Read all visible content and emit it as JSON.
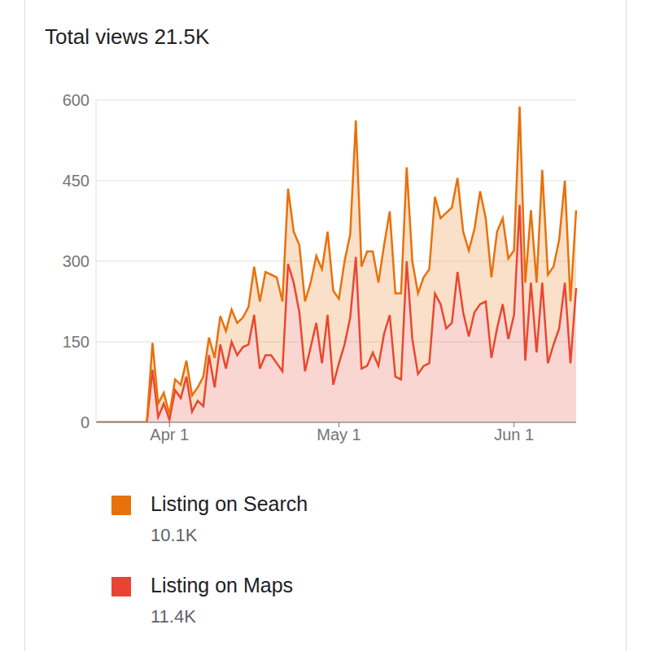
{
  "chart_data": {
    "type": "area",
    "title": "Total views 21.5K",
    "stacked": true,
    "grid": true,
    "categories": [
      null,
      null,
      null,
      null,
      null,
      null,
      null,
      null,
      null,
      null,
      null,
      null,
      null,
      "Apr 1",
      null,
      null,
      null,
      null,
      null,
      null,
      null,
      null,
      null,
      null,
      null,
      null,
      null,
      null,
      null,
      null,
      null,
      null,
      null,
      null,
      null,
      null,
      null,
      null,
      null,
      null,
      null,
      null,
      null,
      "May 1",
      null,
      null,
      null,
      null,
      null,
      null,
      null,
      null,
      null,
      null,
      null,
      null,
      null,
      null,
      null,
      null,
      null,
      null,
      null,
      null,
      null,
      null,
      null,
      null,
      null,
      null,
      null,
      null,
      null,
      null,
      "Jun 1",
      null,
      null,
      null,
      null,
      null,
      null,
      null,
      null,
      null,
      null,
      null
    ],
    "ylim": [
      0,
      600
    ],
    "yticks": [
      0,
      150,
      300,
      450,
      600
    ],
    "series": [
      {
        "name": "Listing on Search",
        "total": "10.1K",
        "color": "#e8710a",
        "values": [
          0,
          0,
          0,
          0,
          0,
          0,
          0,
          0,
          0,
          0,
          50,
          25,
          20,
          10,
          20,
          25,
          30,
          30,
          25,
          55,
          33,
          55,
          53,
          70,
          60,
          60,
          55,
          70,
          90,
          125,
          155,
          150,
          160,
          130,
          140,
          95,
          125,
          130,
          120,
          125,
          175,
          155,
          175,
          120,
          155,
          155,
          254,
          190,
          213,
          188,
          155,
          165,
          193,
          155,
          160,
          175,
          145,
          150,
          165,
          175,
          180,
          160,
          215,
          215,
          175,
          150,
          160,
          155,
          210,
          155,
          150,
          180,
          160,
          150,
          120,
          183,
          145,
          135,
          130,
          210,
          165,
          145,
          165,
          190,
          115,
          145
        ]
      },
      {
        "name": "Listing on Maps",
        "total": "11.4K",
        "color": "#ea4335",
        "values": [
          0,
          0,
          0,
          0,
          0,
          0,
          0,
          0,
          0,
          0,
          98,
          10,
          35,
          5,
          60,
          45,
          85,
          20,
          40,
          30,
          125,
          65,
          145,
          100,
          150,
          125,
          140,
          145,
          200,
          100,
          125,
          125,
          110,
          95,
          295,
          260,
          205,
          95,
          140,
          185,
          110,
          200,
          70,
          110,
          145,
          195,
          308,
          100,
          105,
          130,
          105,
          165,
          200,
          85,
          80,
          300,
          155,
          90,
          105,
          110,
          240,
          220,
          175,
          185,
          280,
          205,
          160,
          205,
          220,
          225,
          120,
          175,
          220,
          155,
          200,
          405,
          115,
          260,
          130,
          260,
          110,
          145,
          175,
          260,
          110,
          250
        ]
      }
    ]
  }
}
